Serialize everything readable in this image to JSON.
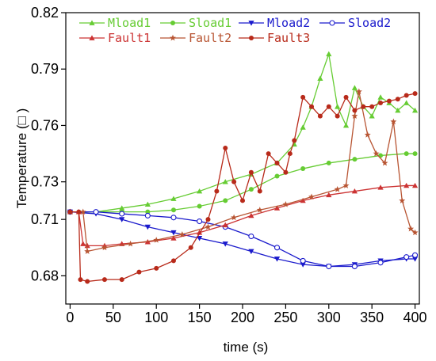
{
  "chart_data": {
    "type": "line",
    "xlabel": "time (s)",
    "ylabel": "Temperature (□ )",
    "xlim": [
      -5,
      405
    ],
    "ylim": [
      0.665,
      0.82
    ],
    "x_ticks": [
      0,
      50,
      100,
      150,
      200,
      250,
      300,
      350,
      400
    ],
    "x_tick_labels": [
      "0",
      "50",
      "100",
      "150",
      "200",
      "250",
      "300",
      "350",
      "400"
    ],
    "y_ticks": [
      0.68,
      0.71,
      0.73,
      0.76,
      0.79,
      0.82
    ],
    "y_tick_labels": [
      "0.68",
      "0.71",
      "0.73",
      "0.76",
      "0.79",
      "0.82"
    ],
    "grid": false,
    "legend_position": "top",
    "series": [
      {
        "name": "Mload1",
        "color": "#66cc33",
        "marker": "triangle-up",
        "x": [
          0,
          30,
          60,
          90,
          120,
          150,
          180,
          210,
          240,
          260,
          270,
          280,
          290,
          300,
          310,
          320,
          330,
          340,
          350,
          360,
          370,
          380,
          390,
          400
        ],
        "y": [
          0.714,
          0.714,
          0.716,
          0.718,
          0.721,
          0.725,
          0.73,
          0.734,
          0.74,
          0.75,
          0.759,
          0.77,
          0.785,
          0.798,
          0.77,
          0.76,
          0.78,
          0.77,
          0.765,
          0.775,
          0.772,
          0.768,
          0.772,
          0.768
        ]
      },
      {
        "name": "Sload1",
        "color": "#66cc33",
        "marker": "circle",
        "x": [
          0,
          30,
          60,
          90,
          120,
          150,
          180,
          210,
          240,
          270,
          300,
          330,
          360,
          390,
          400
        ],
        "y": [
          0.714,
          0.714,
          0.714,
          0.714,
          0.715,
          0.717,
          0.72,
          0.726,
          0.733,
          0.737,
          0.74,
          0.742,
          0.744,
          0.745,
          0.745
        ]
      },
      {
        "name": "Mload2",
        "color": "#1a1acc",
        "marker": "triangle-down",
        "x": [
          0,
          30,
          60,
          90,
          120,
          150,
          180,
          210,
          240,
          270,
          300,
          330,
          360,
          390,
          400
        ],
        "y": [
          0.714,
          0.713,
          0.71,
          0.706,
          0.703,
          0.7,
          0.697,
          0.693,
          0.689,
          0.686,
          0.685,
          0.686,
          0.688,
          0.689,
          0.689
        ]
      },
      {
        "name": "Sload2",
        "color": "#1a1acc",
        "marker": "circle-open",
        "x": [
          0,
          30,
          60,
          90,
          120,
          150,
          180,
          210,
          240,
          270,
          300,
          330,
          360,
          390,
          400
        ],
        "y": [
          0.714,
          0.714,
          0.713,
          0.712,
          0.711,
          0.709,
          0.706,
          0.701,
          0.695,
          0.688,
          0.685,
          0.685,
          0.687,
          0.69,
          0.691
        ]
      },
      {
        "name": "Fault1",
        "color": "#cc3333",
        "marker": "triangle-up",
        "x": [
          0,
          10,
          15,
          20,
          40,
          60,
          90,
          120,
          150,
          180,
          210,
          240,
          270,
          300,
          330,
          360,
          390,
          400
        ],
        "y": [
          0.714,
          0.714,
          0.697,
          0.696,
          0.696,
          0.697,
          0.698,
          0.7,
          0.703,
          0.707,
          0.712,
          0.716,
          0.72,
          0.723,
          0.725,
          0.727,
          0.728,
          0.728
        ]
      },
      {
        "name": "Fault2",
        "color": "#b85533",
        "marker": "star",
        "x": [
          0,
          15,
          20,
          40,
          70,
          100,
          130,
          160,
          190,
          220,
          250,
          280,
          310,
          320,
          330,
          335,
          345,
          355,
          365,
          375,
          385,
          395,
          400
        ],
        "y": [
          0.714,
          0.714,
          0.693,
          0.695,
          0.697,
          0.699,
          0.702,
          0.706,
          0.711,
          0.715,
          0.718,
          0.722,
          0.726,
          0.728,
          0.765,
          0.778,
          0.755,
          0.745,
          0.74,
          0.762,
          0.72,
          0.705,
          0.703
        ]
      },
      {
        "name": "Fault3",
        "color": "#b82a1a",
        "marker": "circle",
        "x": [
          0,
          10,
          12,
          20,
          40,
          60,
          80,
          100,
          120,
          140,
          160,
          170,
          180,
          190,
          200,
          210,
          220,
          230,
          240,
          250,
          255,
          260,
          270,
          280,
          290,
          300,
          310,
          320,
          330,
          340,
          350,
          360,
          370,
          380,
          390,
          400
        ],
        "y": [
          0.714,
          0.714,
          0.678,
          0.677,
          0.678,
          0.678,
          0.682,
          0.684,
          0.688,
          0.695,
          0.71,
          0.725,
          0.748,
          0.73,
          0.72,
          0.735,
          0.725,
          0.745,
          0.74,
          0.735,
          0.745,
          0.752,
          0.775,
          0.77,
          0.765,
          0.77,
          0.765,
          0.775,
          0.768,
          0.77,
          0.77,
          0.772,
          0.773,
          0.774,
          0.776,
          0.777
        ]
      }
    ]
  }
}
